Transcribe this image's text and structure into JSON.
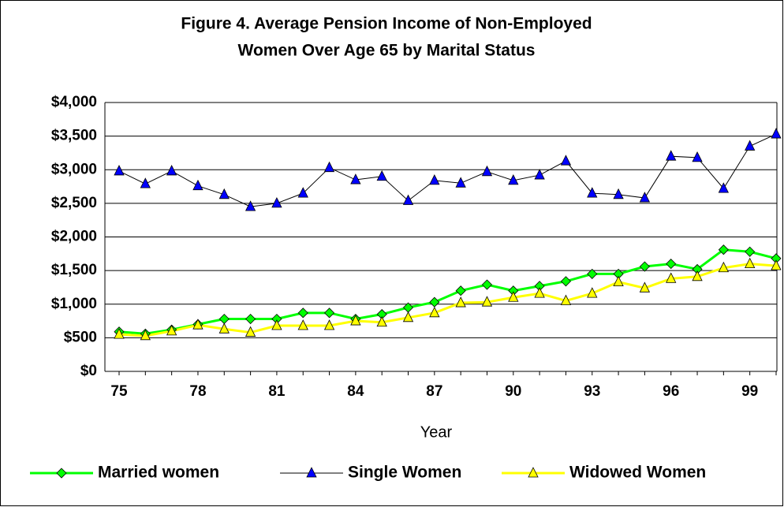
{
  "chart_data": {
    "type": "line",
    "title": [
      "Figure 4.  Average Pension Income of Non-Employed",
      "Women Over Age 65 by Marital Status"
    ],
    "x_label": "Year",
    "categories": [
      "75",
      null,
      null,
      "78",
      null,
      null,
      "81",
      null,
      null,
      "84",
      null,
      null,
      "87",
      null,
      null,
      "90",
      null,
      null,
      "93",
      null,
      null,
      "96",
      null,
      null,
      "99",
      null
    ],
    "ylim": [
      0,
      4000
    ],
    "yticks": [
      {
        "value": 0,
        "label": "$0"
      },
      {
        "value": 500,
        "label": "$500"
      },
      {
        "value": 1000,
        "label": "$1,000"
      },
      {
        "value": 1500,
        "label": "$1,500"
      },
      {
        "value": 2000,
        "label": "$2,000"
      },
      {
        "value": 2500,
        "label": "$2,500"
      },
      {
        "value": 3000,
        "label": "$3,000"
      },
      {
        "value": 3500,
        "label": "$3,500"
      },
      {
        "value": 4000,
        "label": "$4,000"
      }
    ],
    "grid": true,
    "legend": "bottom",
    "series": [
      {
        "name": "Married women",
        "color": "#00ff00",
        "marker_color": "#00ff00",
        "marker": "diamond",
        "line_width": 3,
        "values": [
          590,
          560,
          620,
          700,
          780,
          780,
          780,
          870,
          870,
          780,
          850,
          950,
          1030,
          1200,
          1290,
          1200,
          1270,
          1340,
          1450,
          1450,
          1560,
          1600,
          1520,
          1810,
          1780,
          1680
        ]
      },
      {
        "name": "Single Women",
        "color": "#000000",
        "marker_color": "#0000ff",
        "marker": "triangle",
        "line_width": 1,
        "values": [
          2980,
          2790,
          2980,
          2760,
          2630,
          2450,
          2500,
          2650,
          3030,
          2850,
          2900,
          2540,
          2840,
          2800,
          2970,
          2840,
          2920,
          3130,
          2650,
          2630,
          2580,
          3200,
          3180,
          2720,
          3350,
          3530
        ]
      },
      {
        "name": "Widowed Women",
        "color": "#ffff00",
        "marker_color": "#ffff00",
        "marker": "triangle",
        "line_width": 3,
        "values": [
          550,
          530,
          600,
          690,
          630,
          580,
          680,
          680,
          680,
          750,
          730,
          800,
          870,
          1020,
          1030,
          1100,
          1160,
          1050,
          1160,
          1330,
          1240,
          1380,
          1410,
          1540,
          1600,
          1570
        ]
      }
    ]
  }
}
